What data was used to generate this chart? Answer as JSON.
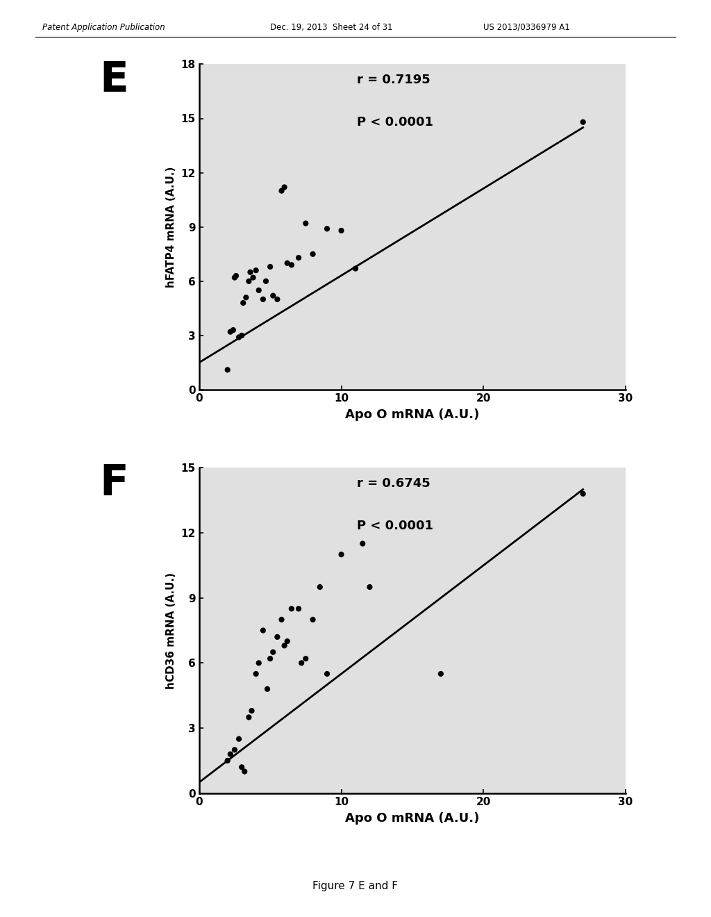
{
  "panel_E": {
    "label": "E",
    "x": [
      2.0,
      2.2,
      2.4,
      2.5,
      2.6,
      2.8,
      3.0,
      3.1,
      3.3,
      3.5,
      3.6,
      3.8,
      4.0,
      4.2,
      4.5,
      4.7,
      5.0,
      5.2,
      5.5,
      5.8,
      6.0,
      6.2,
      6.5,
      7.0,
      7.5,
      8.0,
      9.0,
      10.0,
      11.0,
      27.0
    ],
    "y": [
      1.1,
      3.2,
      3.3,
      6.2,
      6.3,
      2.9,
      3.0,
      4.8,
      5.1,
      6.0,
      6.5,
      6.2,
      6.6,
      5.5,
      5.0,
      6.0,
      6.8,
      5.2,
      5.0,
      11.0,
      11.2,
      7.0,
      6.9,
      7.3,
      9.2,
      7.5,
      8.9,
      8.8,
      6.7,
      14.8
    ],
    "xlabel": "Apo O mRNA (A.U.)",
    "ylabel": "hFATP4 mRNA (A.U.)",
    "r_text": "r = 0.7195",
    "p_text": "P < 0.0001",
    "xlim": [
      0,
      30
    ],
    "ylim": [
      0,
      18
    ],
    "xticks": [
      0,
      10,
      20,
      30
    ],
    "yticks": [
      0,
      3,
      6,
      9,
      12,
      15,
      18
    ],
    "line_x": [
      0,
      27
    ],
    "line_y": [
      1.5,
      14.5
    ]
  },
  "panel_F": {
    "label": "F",
    "x": [
      2.0,
      2.2,
      2.5,
      2.8,
      3.0,
      3.2,
      3.5,
      3.7,
      4.0,
      4.2,
      4.5,
      4.8,
      5.0,
      5.2,
      5.5,
      5.8,
      6.0,
      6.2,
      6.5,
      7.0,
      7.2,
      7.5,
      8.0,
      8.5,
      9.0,
      10.0,
      11.5,
      12.0,
      17.0,
      27.0
    ],
    "y": [
      1.5,
      1.8,
      2.0,
      2.5,
      1.2,
      1.0,
      3.5,
      3.8,
      5.5,
      6.0,
      7.5,
      4.8,
      6.2,
      6.5,
      7.2,
      8.0,
      6.8,
      7.0,
      8.5,
      8.5,
      6.0,
      6.2,
      8.0,
      9.5,
      5.5,
      11.0,
      11.5,
      9.5,
      5.5,
      13.8
    ],
    "xlabel": "Apo O mRNA (A.U.)",
    "ylabel": "hCD36 mRNA (A.U.)",
    "r_text": "r = 0.6745",
    "p_text": "P < 0.0001",
    "xlim": [
      0,
      30
    ],
    "ylim": [
      0,
      15
    ],
    "xticks": [
      0,
      10,
      20,
      30
    ],
    "yticks": [
      0,
      3,
      6,
      9,
      12,
      15
    ],
    "line_x": [
      0,
      27
    ],
    "line_y": [
      0.5,
      14.0
    ]
  },
  "header_left": "Patent Application Publication",
  "header_mid": "Dec. 19, 2013  Sheet 24 of 31",
  "header_right": "US 2013/0336979 A1",
  "footer_text": "Figure 7 E and F",
  "bg_color": "#ffffff",
  "plot_bg_color": "#e0e0e0",
  "dot_color": "#000000",
  "line_color": "#000000",
  "dot_size": 35
}
